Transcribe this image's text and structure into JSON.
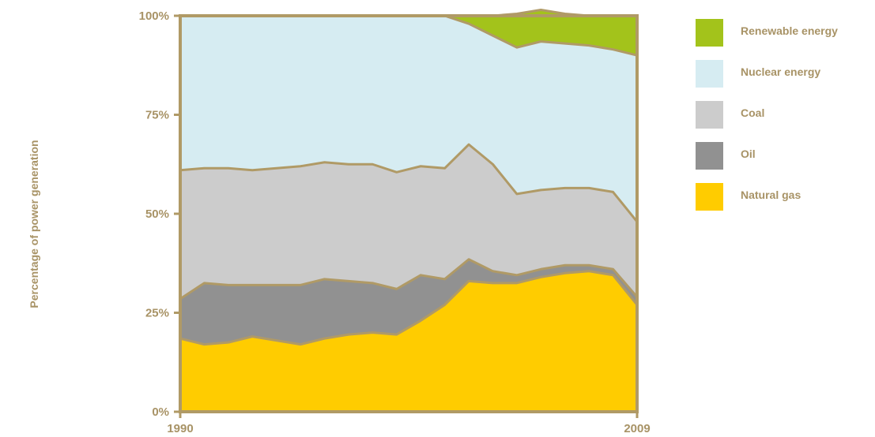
{
  "chart_data": {
    "type": "area",
    "stacked": true,
    "percent": true,
    "x": [
      1990,
      1991,
      1992,
      1993,
      1994,
      1995,
      1996,
      1997,
      1998,
      1999,
      2000,
      2001,
      2002,
      2003,
      2004,
      2005,
      2006,
      2007,
      2008,
      2009
    ],
    "series": [
      {
        "name": "Natural gas",
        "color": "#ffcc00",
        "values": [
          18.5,
          17,
          17.5,
          19,
          18,
          17,
          18.5,
          19.5,
          20,
          19.5,
          23,
          27,
          33,
          32.5,
          32.5,
          34,
          35,
          35.5,
          34.5,
          27
        ]
      },
      {
        "name": "Oil",
        "color": "#919191",
        "values": [
          10,
          15.5,
          14.5,
          13,
          14,
          15,
          15,
          13.5,
          12.5,
          11.5,
          11.5,
          6.5,
          5.5,
          3,
          2,
          2,
          2,
          1.5,
          1.5,
          2
        ]
      },
      {
        "name": "Coal",
        "color": "#cccccc",
        "values": [
          32.5,
          29,
          29.5,
          29,
          29.5,
          30,
          29.5,
          29.5,
          30,
          29.5,
          27.5,
          28,
          29,
          27,
          20.5,
          20,
          19.5,
          19.5,
          19.5,
          19
        ]
      },
      {
        "name": "Nuclear energy",
        "color": "#d6ecf2",
        "values": [
          39,
          38.5,
          38.5,
          39,
          38.5,
          38,
          37,
          37.5,
          37.5,
          39.5,
          38,
          38.5,
          30.5,
          32.5,
          37,
          37.5,
          36.5,
          36,
          36,
          42
        ]
      },
      {
        "name": "Renewable energy",
        "color": "#a3c31b",
        "values": [
          0,
          0,
          0,
          0,
          0,
          0,
          0,
          0,
          0,
          0,
          0,
          0,
          2,
          5,
          8.5,
          8,
          7.5,
          7.5,
          8.5,
          10
        ]
      }
    ],
    "xticks": [
      "1990",
      "2009"
    ],
    "yticks": [
      "0%",
      "25%",
      "50%",
      "75%",
      "100%"
    ],
    "ylabel": "Percentage of power generation",
    "xlabel": "",
    "ylim": [
      0,
      100
    ],
    "legend_position": "right",
    "grid": false,
    "line_color": "#b09a66"
  }
}
